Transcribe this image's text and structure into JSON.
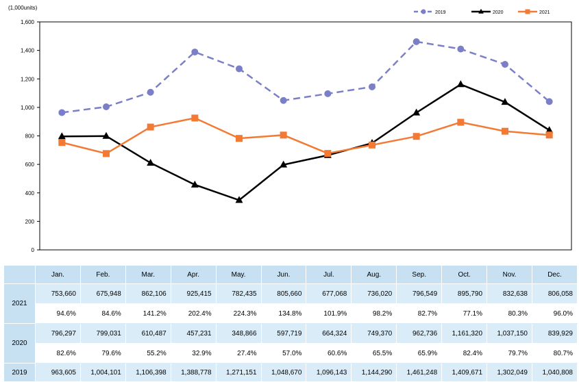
{
  "chart_data": {
    "type": "line",
    "unit_label": "(1,000units)",
    "categories": [
      "Jan.",
      "Feb.",
      "Mar.",
      "Apr.",
      "May.",
      "Jun.",
      "Jul.",
      "Aug.",
      "Sep.",
      "Oct.",
      "Nov.",
      "Dec."
    ],
    "ylim": [
      0,
      1600
    ],
    "yticks": [
      "0",
      "200",
      "400",
      "600",
      "800",
      "1,000",
      "1,200",
      "1,400",
      "1,600"
    ],
    "legend_position": "top-right",
    "grid": false,
    "series": [
      {
        "name": "2019",
        "color": "#7b7fc8",
        "marker": "circle",
        "dash": true,
        "values": [
          963.605,
          1004.101,
          1106.398,
          1388.778,
          1271.151,
          1048.67,
          1096.143,
          1144.29,
          1461.248,
          1409.671,
          1302.049,
          1040.808
        ]
      },
      {
        "name": "2020",
        "color": "#000000",
        "marker": "triangle",
        "dash": false,
        "values": [
          796.297,
          799.031,
          610.487,
          457.231,
          348.866,
          597.719,
          664.324,
          749.37,
          962.736,
          1161.32,
          1037.15,
          839.929
        ]
      },
      {
        "name": "2021",
        "color": "#f37a34",
        "marker": "square",
        "dash": false,
        "values": [
          753.66,
          675.948,
          862.106,
          925.415,
          782.435,
          805.66,
          677.068,
          736.02,
          796.549,
          895.79,
          832.638,
          806.058
        ]
      }
    ]
  },
  "table": {
    "months": [
      "Jan.",
      "Feb.",
      "Mar.",
      "Apr.",
      "May.",
      "Jun.",
      "Jul.",
      "Aug.",
      "Sep.",
      "Oct.",
      "Nov.",
      "Dec."
    ],
    "rows": [
      {
        "year": "2021",
        "units": [
          "753,660",
          "675,948",
          "862,106",
          "925,415",
          "782,435",
          "805,660",
          "677,068",
          "736,020",
          "796,549",
          "895,790",
          "832,638",
          "806,058"
        ],
        "pct": [
          "94.6%",
          "84.6%",
          "141.2%",
          "202.4%",
          "224.3%",
          "134.8%",
          "101.9%",
          "98.2%",
          "82.7%",
          "77.1%",
          "80.3%",
          "96.0%"
        ]
      },
      {
        "year": "2020",
        "units": [
          "796,297",
          "799,031",
          "610,487",
          "457,231",
          "348,866",
          "597,719",
          "664,324",
          "749,370",
          "962,736",
          "1,161,320",
          "1,037,150",
          "839,929"
        ],
        "pct": [
          "82.6%",
          "79.6%",
          "55.2%",
          "32.9%",
          "27.4%",
          "57.0%",
          "60.6%",
          "65.5%",
          "65.9%",
          "82.4%",
          "79.7%",
          "80.7%"
        ]
      },
      {
        "year": "2019",
        "units": [
          "963,605",
          "1,004,101",
          "1,106,398",
          "1,388,778",
          "1,271,151",
          "1,048,670",
          "1,096,143",
          "1,144,290",
          "1,461,248",
          "1,409,671",
          "1,302,049",
          "1,040,808"
        ]
      }
    ]
  }
}
